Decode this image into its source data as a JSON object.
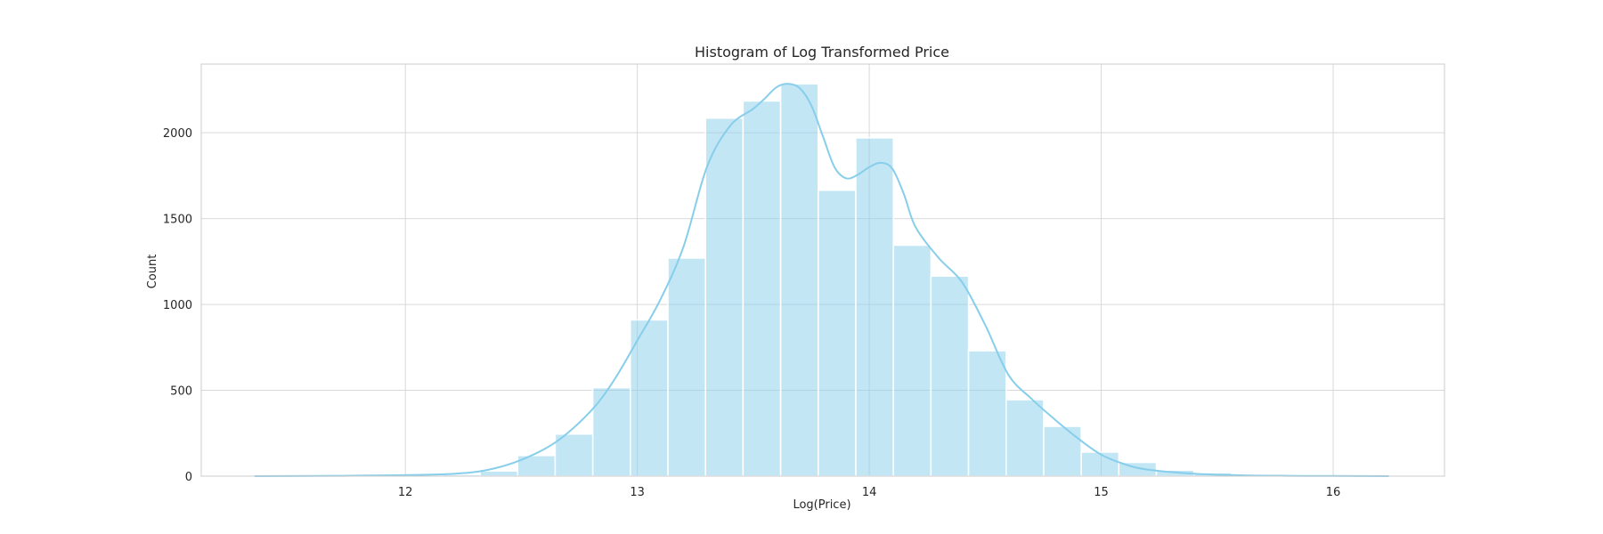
{
  "chart_data": {
    "type": "bar",
    "subtype": "histogram_with_kde",
    "title": "Histogram of Log Transformed Price",
    "xlabel": "Log(Price)",
    "ylabel": "Count",
    "xlim": [
      11.12,
      16.48
    ],
    "ylim": [
      0,
      2400
    ],
    "xticks": [
      12,
      13,
      14,
      15,
      16
    ],
    "yticks": [
      0,
      500,
      1000,
      1500,
      2000
    ],
    "grid": true,
    "legend": "none",
    "bar_color": "#87ceeb",
    "bar_opacity": 0.5,
    "kde_color": "#87ceeb",
    "bins": [
      {
        "x0": 11.35,
        "x1": 11.512,
        "count": 1
      },
      {
        "x0": 11.512,
        "x1": 11.674,
        "count": 0
      },
      {
        "x0": 11.674,
        "x1": 11.836,
        "count": 1
      },
      {
        "x0": 11.836,
        "x1": 11.998,
        "count": 2
      },
      {
        "x0": 11.998,
        "x1": 12.16,
        "count": 3
      },
      {
        "x0": 12.16,
        "x1": 12.322,
        "count": 10
      },
      {
        "x0": 12.322,
        "x1": 12.484,
        "count": 30
      },
      {
        "x0": 12.484,
        "x1": 12.646,
        "count": 120
      },
      {
        "x0": 12.646,
        "x1": 12.808,
        "count": 245
      },
      {
        "x0": 12.808,
        "x1": 12.97,
        "count": 515
      },
      {
        "x0": 12.97,
        "x1": 13.132,
        "count": 910
      },
      {
        "x0": 13.132,
        "x1": 13.294,
        "count": 1270
      },
      {
        "x0": 13.294,
        "x1": 13.456,
        "count": 2085
      },
      {
        "x0": 13.456,
        "x1": 13.618,
        "count": 2185
      },
      {
        "x0": 13.618,
        "x1": 13.78,
        "count": 2285
      },
      {
        "x0": 13.78,
        "x1": 13.942,
        "count": 1665
      },
      {
        "x0": 13.942,
        "x1": 14.104,
        "count": 1970
      },
      {
        "x0": 14.104,
        "x1": 14.266,
        "count": 1345
      },
      {
        "x0": 14.266,
        "x1": 14.428,
        "count": 1165
      },
      {
        "x0": 14.428,
        "x1": 14.59,
        "count": 730
      },
      {
        "x0": 14.59,
        "x1": 14.752,
        "count": 445
      },
      {
        "x0": 14.752,
        "x1": 14.914,
        "count": 290
      },
      {
        "x0": 14.914,
        "x1": 15.076,
        "count": 140
      },
      {
        "x0": 15.076,
        "x1": 15.238,
        "count": 80
      },
      {
        "x0": 15.238,
        "x1": 15.4,
        "count": 35
      },
      {
        "x0": 15.4,
        "x1": 15.562,
        "count": 20
      },
      {
        "x0": 15.562,
        "x1": 15.724,
        "count": 8
      },
      {
        "x0": 15.724,
        "x1": 15.886,
        "count": 4
      },
      {
        "x0": 15.886,
        "x1": 16.048,
        "count": 2
      },
      {
        "x0": 16.048,
        "x1": 16.21,
        "count": 1
      }
    ],
    "kde": {
      "x": [
        11.35,
        11.6,
        11.8,
        12.0,
        12.2,
        12.35,
        12.5,
        12.65,
        12.8,
        12.9,
        13.0,
        13.1,
        13.2,
        13.3,
        13.4,
        13.5,
        13.55,
        13.6,
        13.65,
        13.7,
        13.75,
        13.8,
        13.85,
        13.9,
        13.95,
        14.0,
        14.05,
        14.1,
        14.15,
        14.2,
        14.3,
        14.4,
        14.5,
        14.6,
        14.7,
        14.8,
        14.9,
        15.0,
        15.1,
        15.2,
        15.4,
        15.6,
        15.8,
        16.0,
        16.24
      ],
      "y": [
        0,
        1,
        3,
        6,
        13,
        35,
        95,
        200,
        380,
        560,
        790,
        1030,
        1340,
        1800,
        2040,
        2140,
        2200,
        2265,
        2285,
        2260,
        2160,
        1980,
        1800,
        1735,
        1755,
        1800,
        1825,
        1790,
        1640,
        1450,
        1270,
        1130,
        880,
        590,
        450,
        330,
        220,
        125,
        70,
        38,
        14,
        5,
        2,
        1,
        0
      ]
    }
  }
}
